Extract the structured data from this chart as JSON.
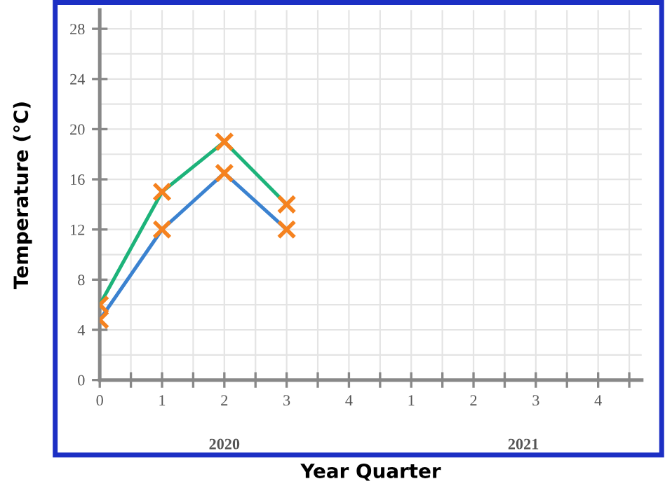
{
  "chart_data": {
    "type": "line",
    "xlabel": "Year Quarter",
    "ylabel": "Temperature (°C)",
    "categories": [
      "0",
      "1",
      "2",
      "3",
      "4",
      "1",
      "2",
      "3",
      "4"
    ],
    "series": [
      {
        "color": "#1db37a",
        "values": [
          6,
          15,
          19,
          14,
          null,
          null,
          null,
          null,
          null
        ]
      },
      {
        "color": "#3b82d0",
        "values": [
          4.8,
          12,
          16.5,
          12,
          null,
          null,
          null,
          null,
          null
        ]
      }
    ],
    "ylim": [
      0,
      29.5
    ],
    "yticks": [
      0,
      4,
      8,
      12,
      16,
      20,
      24,
      28
    ],
    "grid": true,
    "marker": "cross",
    "line_style": "solid",
    "annotations": [
      "2020",
      "2021"
    ]
  }
}
